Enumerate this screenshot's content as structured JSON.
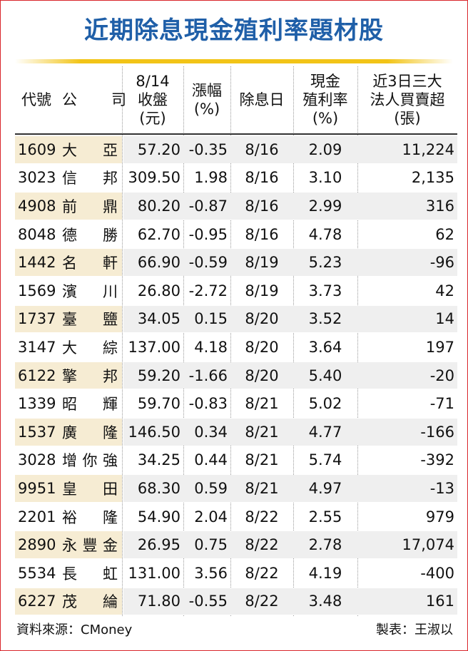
{
  "title": "近期除息現金殖利率題材股",
  "header": [
    [
      "代號"
    ],
    [
      "公司"
    ],
    [
      "8/14",
      "收盤",
      "(元)"
    ],
    [
      "漲幅",
      "(%)"
    ],
    [
      "除息日"
    ],
    [
      "現金",
      "殖利率",
      "(%)"
    ],
    [
      "近3日三大",
      "法人買賣超",
      "(張)"
    ]
  ],
  "rows": [
    [
      "1609",
      "大亞",
      "57.20",
      "-0.35",
      "8/16",
      "2.09",
      "11,224"
    ],
    [
      "3023",
      "信邦",
      "309.50",
      "1.98",
      "8/16",
      "3.10",
      "2,135"
    ],
    [
      "4908",
      "前鼎",
      "80.20",
      "-0.87",
      "8/16",
      "2.99",
      "316"
    ],
    [
      "8048",
      "德勝",
      "62.70",
      "-0.95",
      "8/16",
      "4.78",
      "62"
    ],
    [
      "1442",
      "名軒",
      "66.90",
      "-0.59",
      "8/19",
      "5.23",
      "-96"
    ],
    [
      "1569",
      "濱川",
      "26.80",
      "-2.72",
      "8/19",
      "3.73",
      "42"
    ],
    [
      "1737",
      "臺鹽",
      "34.05",
      "0.15",
      "8/20",
      "3.52",
      "14"
    ],
    [
      "3147",
      "大綜",
      "137.00",
      "4.18",
      "8/20",
      "3.64",
      "197"
    ],
    [
      "6122",
      "擎邦",
      "59.20",
      "-1.66",
      "8/20",
      "5.40",
      "-20"
    ],
    [
      "1339",
      "昭輝",
      "59.70",
      "-0.83",
      "8/21",
      "5.02",
      "-71"
    ],
    [
      "1537",
      "廣隆",
      "146.50",
      "0.34",
      "8/21",
      "4.77",
      "-166"
    ],
    [
      "3028",
      "增你強",
      "34.25",
      "0.44",
      "8/21",
      "5.74",
      "-392"
    ],
    [
      "9951",
      "皇田",
      "68.30",
      "0.59",
      "8/21",
      "4.97",
      "-13"
    ],
    [
      "2201",
      "裕隆",
      "54.90",
      "2.04",
      "8/22",
      "2.55",
      "979"
    ],
    [
      "2890",
      "永豐金",
      "26.95",
      "0.75",
      "8/22",
      "2.78",
      "17,074"
    ],
    [
      "5534",
      "長虹",
      "131.00",
      "3.56",
      "8/22",
      "4.19",
      "-400"
    ],
    [
      "6227",
      "茂綸",
      "71.80",
      "-0.55",
      "8/22",
      "3.48",
      "161"
    ]
  ],
  "footer": {
    "source": "資料來源：CMoney",
    "credit": "製表：王淑以"
  }
}
